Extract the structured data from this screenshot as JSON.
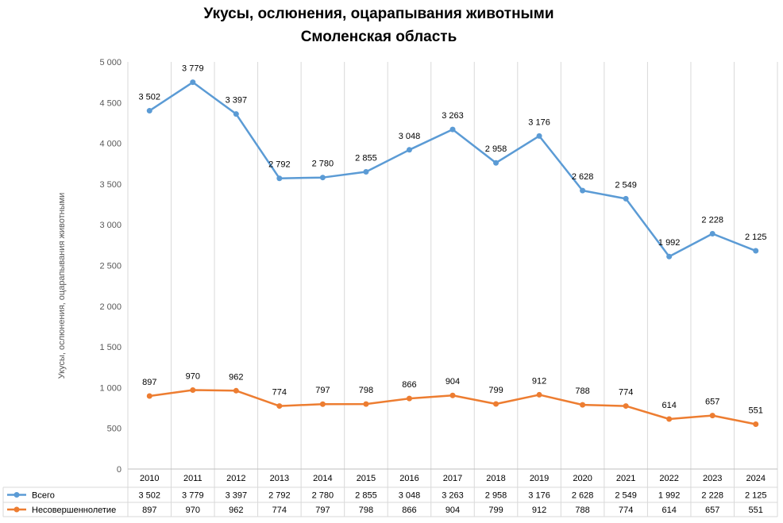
{
  "chart_data": {
    "type": "line",
    "title": [
      "Укусы, ослюнения, оцарапывания животными",
      "Смоленская область"
    ],
    "ylabel": "Укусы, ослюнения, оцарапывания животными",
    "xlabel": "",
    "ylim": [
      0,
      5000
    ],
    "yticks": [
      0,
      500,
      1000,
      1500,
      2000,
      2500,
      3000,
      3500,
      4000,
      4500,
      5000
    ],
    "ytick_labels": [
      "0",
      "500",
      "1 000",
      "1 500",
      "2 000",
      "2 500",
      "3 000",
      "3 500",
      "4 000",
      "4 500",
      "5 000"
    ],
    "categories": [
      "2010",
      "2011",
      "2012",
      "2013",
      "2014",
      "2015",
      "2016",
      "2017",
      "2018",
      "2019",
      "2020",
      "2021",
      "2022",
      "2023",
      "2024"
    ],
    "grid": "vertical",
    "legend": "data-table-bottom",
    "series": [
      {
        "name": "Всего",
        "color": "#5b9bd5",
        "plotted_values": [
          4400,
          4750,
          4360,
          3570,
          3580,
          3650,
          3920,
          4170,
          3760,
          4090,
          3420,
          3320,
          2610,
          2890,
          2680
        ],
        "labels": [
          "3 502",
          "3 779",
          "3 397",
          "2 792",
          "2 780",
          "2 855",
          "3 048",
          "3 263",
          "2 958",
          "3 176",
          "2 628",
          "2 549",
          "1 992",
          "2 228",
          "2 125"
        ]
      },
      {
        "name": "Несовершеннолетие",
        "color": "#ed7d31",
        "plotted_values": [
          897,
          970,
          962,
          774,
          797,
          798,
          866,
          904,
          799,
          912,
          788,
          774,
          614,
          657,
          551
        ],
        "labels": [
          "897",
          "970",
          "962",
          "774",
          "797",
          "798",
          "866",
          "904",
          "799",
          "912",
          "788",
          "774",
          "614",
          "657",
          "551"
        ]
      }
    ]
  }
}
